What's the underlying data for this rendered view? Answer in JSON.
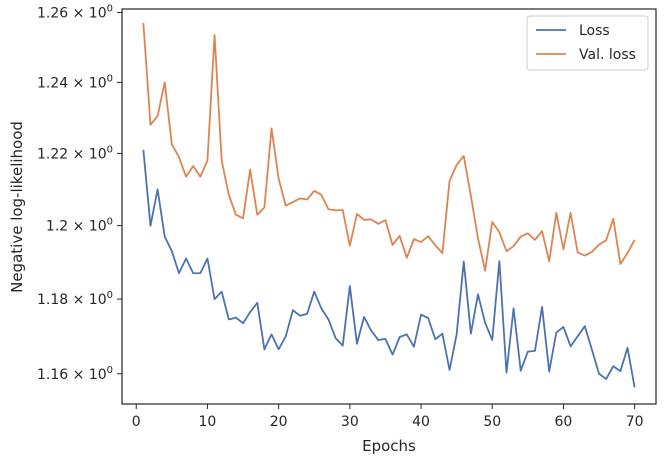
{
  "chart_data": {
    "type": "line",
    "xlabel": "Epochs",
    "ylabel": "Negative log-likelihood",
    "xlim": [
      -2,
      73
    ],
    "ylim": [
      1.152,
      1.261
    ],
    "yscale": "log",
    "grid": false,
    "legend_placement": "top-right",
    "x_ticks": [
      0,
      10,
      20,
      30,
      40,
      50,
      60,
      70
    ],
    "x_tick_labels": [
      "0",
      "10",
      "20",
      "30",
      "40",
      "50",
      "60",
      "70"
    ],
    "y_ticks": [
      1.16,
      1.18,
      1.2,
      1.22,
      1.24,
      1.26
    ],
    "y_tick_labels": [
      {
        "mantissa": "1.16",
        "base": "10",
        "exp": "0"
      },
      {
        "mantissa": "1.18",
        "base": "10",
        "exp": "0"
      },
      {
        "mantissa": "1.2",
        "base": "10",
        "exp": "0"
      },
      {
        "mantissa": "1.22",
        "base": "10",
        "exp": "0"
      },
      {
        "mantissa": "1.24",
        "base": "10",
        "exp": "0"
      },
      {
        "mantissa": "1.26",
        "base": "10",
        "exp": "0"
      }
    ],
    "x": [
      1,
      2,
      3,
      4,
      5,
      6,
      7,
      8,
      9,
      10,
      11,
      12,
      13,
      14,
      15,
      16,
      17,
      18,
      19,
      20,
      21,
      22,
      23,
      24,
      25,
      26,
      27,
      28,
      29,
      30,
      31,
      32,
      33,
      34,
      35,
      36,
      37,
      38,
      39,
      40,
      41,
      42,
      43,
      44,
      45,
      46,
      47,
      48,
      49,
      50,
      51,
      52,
      53,
      54,
      55,
      56,
      57,
      58,
      59,
      60,
      61,
      62,
      63,
      64,
      65,
      66,
      67,
      68,
      69,
      70
    ],
    "series": [
      {
        "name": "Loss",
        "color": "#4c72b0",
        "values": [
          1.221,
          1.2,
          1.21,
          1.197,
          1.193,
          1.187,
          1.191,
          1.187,
          1.187,
          1.191,
          1.18,
          1.182,
          1.1745,
          1.175,
          1.1735,
          1.1765,
          1.179,
          1.1665,
          1.1705,
          1.1665,
          1.17,
          1.177,
          1.1755,
          1.176,
          1.182,
          1.1775,
          1.1745,
          1.1695,
          1.1675,
          1.1835,
          1.168,
          1.1752,
          1.1715,
          1.169,
          1.1693,
          1.1651,
          1.1698,
          1.1705,
          1.1672,
          1.1758,
          1.1749,
          1.1692,
          1.1707,
          1.161,
          1.1705,
          1.1902,
          1.1707,
          1.1813,
          1.1736,
          1.169,
          1.1903,
          1.1603,
          1.1775,
          1.1608,
          1.1659,
          1.1661,
          1.1779,
          1.1606,
          1.171,
          1.1725,
          1.1673,
          1.17,
          1.1727,
          1.1664,
          1.16,
          1.1586,
          1.162,
          1.1607,
          1.1669,
          1.1564
        ]
      },
      {
        "name": "Val. loss",
        "color": "#dd8452",
        "values": [
          1.257,
          1.228,
          1.2305,
          1.24,
          1.2225,
          1.219,
          1.2135,
          1.2165,
          1.2135,
          1.218,
          1.2535,
          1.218,
          1.2085,
          1.203,
          1.202,
          1.2155,
          1.203,
          1.205,
          1.227,
          1.213,
          1.2055,
          1.2065,
          1.2075,
          1.2072,
          1.2096,
          1.2085,
          1.2045,
          1.2042,
          1.2043,
          1.1945,
          1.2032,
          1.2016,
          1.2017,
          1.2005,
          1.2015,
          1.1947,
          1.1972,
          1.1912,
          1.1963,
          1.1955,
          1.1971,
          1.1946,
          1.1925,
          1.2123,
          1.2168,
          1.2193,
          1.2082,
          1.1965,
          1.1877,
          1.201,
          1.1982,
          1.193,
          1.1944,
          1.197,
          1.1979,
          1.1961,
          1.1985,
          1.1902,
          1.2035,
          1.1935,
          1.2035,
          1.1927,
          1.1918,
          1.1928,
          1.1948,
          1.196,
          1.2019,
          1.1895,
          1.1925,
          1.1961
        ]
      }
    ]
  }
}
